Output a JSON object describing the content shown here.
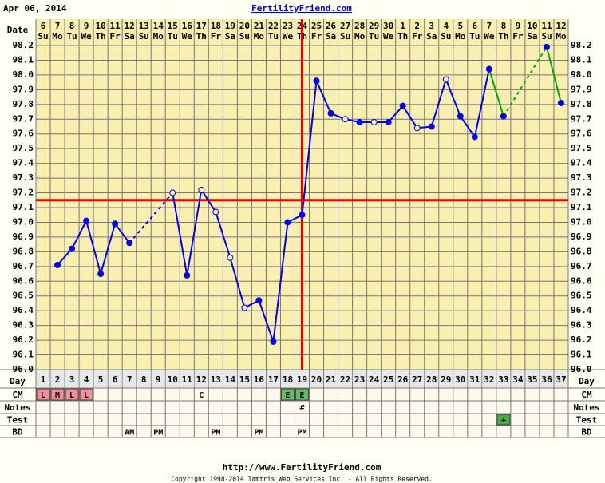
{
  "header": {
    "date": "Apr 06, 2014",
    "site": "FertilityFriend.com"
  },
  "footer": {
    "url": "http://www.FertilityFriend.com",
    "copyright": "Copyright 1998-2014 Tamtris Web Services Inc. - All Rights Reserved."
  },
  "chart_data": {
    "type": "line",
    "date_label": "Date",
    "day_label": "Day",
    "dates": [
      6,
      7,
      8,
      9,
      10,
      11,
      12,
      13,
      14,
      15,
      16,
      17,
      18,
      19,
      20,
      21,
      22,
      23,
      24,
      25,
      26,
      27,
      28,
      29,
      30,
      1,
      2,
      3,
      4,
      5,
      6,
      7,
      8,
      9,
      10,
      11,
      12
    ],
    "weekdays": [
      "Su",
      "Mo",
      "Tu",
      "We",
      "Th",
      "Fr",
      "Sa",
      "Su",
      "Mo",
      "Tu",
      "We",
      "Th",
      "Fr",
      "Sa",
      "Su",
      "Mo",
      "Tu",
      "We",
      "Th",
      "Fr",
      "Sa",
      "Su",
      "Mo",
      "Tu",
      "We",
      "Th",
      "Fr",
      "Sa",
      "Su",
      "Mo",
      "Tu",
      "We",
      "Th",
      "Fr",
      "Sa",
      "Su",
      "Mo"
    ],
    "categories": [
      1,
      2,
      3,
      4,
      5,
      6,
      7,
      8,
      9,
      10,
      11,
      12,
      13,
      14,
      15,
      16,
      17,
      18,
      19,
      20,
      21,
      22,
      23,
      24,
      25,
      26,
      27,
      28,
      29,
      30,
      31,
      32,
      33,
      34,
      35,
      36,
      37
    ],
    "values": [
      null,
      96.71,
      96.82,
      97.01,
      96.65,
      96.99,
      96.86,
      null,
      null,
      97.2,
      96.64,
      97.22,
      97.07,
      96.76,
      96.42,
      96.47,
      96.19,
      97.0,
      97.05,
      97.96,
      97.74,
      97.7,
      97.68,
      97.68,
      97.68,
      97.79,
      97.64,
      97.65,
      97.97,
      97.72,
      97.58,
      98.04,
      97.72,
      null,
      null,
      98.19,
      97.81
    ],
    "open": [
      false,
      false,
      false,
      false,
      false,
      false,
      false,
      false,
      false,
      true,
      false,
      true,
      true,
      true,
      true,
      false,
      false,
      false,
      false,
      false,
      false,
      true,
      false,
      true,
      false,
      false,
      true,
      false,
      true,
      false,
      false,
      false,
      false,
      false,
      false,
      false,
      false
    ],
    "marker_color": "#0000ee",
    "line_colors": [
      "#0000ee",
      "#0000ee",
      "#0000ee",
      "#0000ee",
      "#0000ee",
      "#0000ee",
      "#0000ee",
      "#0000ee",
      "#0000ee",
      "#0000ee",
      "#0000ee",
      "#0000ee",
      "#0000ee",
      "#0000ee",
      "#0000ee",
      "#0000ee",
      "#0000ee",
      "#0000ee",
      "#0000ee",
      "#0000ee",
      "#0000ee",
      "#0000ee",
      "#0000ee",
      "#0000ee",
      "#0000ee",
      "#0000ee",
      "#0000ee",
      "#0000ee",
      "#0000ee",
      "#0000ee",
      "#0000ee",
      "#0000ee",
      "#00aa00",
      "#00aa00",
      "#00aa00",
      "#00aa00",
      "#00aa00"
    ],
    "ylim": [
      96.0,
      98.2
    ],
    "yticks": [
      {
        "value": 96.0,
        "label": "96.0"
      },
      96.1,
      96.2,
      96.3,
      96.4,
      96.5,
      96.6,
      96.7,
      96.8,
      96.9,
      {
        "value": 97.0,
        "label": "97.0"
      },
      97.1,
      97.2,
      97.3,
      97.4,
      97.5,
      97.6,
      97.7,
      97.8,
      97.9,
      {
        "value": 98.0,
        "label": "98.0"
      },
      98.1,
      98.2
    ],
    "grid": true,
    "coverline": 97.15,
    "ovulation_day": 19,
    "marker_line_color": "#ee0000",
    "rows": [
      {
        "label": "CM",
        "cells": [
          "L",
          "M",
          "L",
          "L",
          null,
          null,
          null,
          null,
          null,
          null,
          null,
          "C",
          null,
          null,
          null,
          null,
          null,
          "E",
          "E",
          null,
          null,
          null,
          null,
          null,
          null,
          null,
          null,
          null,
          null,
          null,
          null,
          null,
          null,
          null,
          null,
          null,
          null
        ],
        "colors": [
          "#f0909c",
          "#f0909c",
          "#f0909c",
          "#f0909c",
          null,
          null,
          null,
          null,
          null,
          null,
          null,
          null,
          null,
          null,
          null,
          null,
          null,
          "#66bb66",
          "#66bb66",
          null,
          null,
          null,
          null,
          null,
          null,
          null,
          null,
          null,
          null,
          null,
          null,
          null,
          null,
          null,
          null,
          null,
          null
        ]
      },
      {
        "label": "Notes",
        "cells": [
          null,
          null,
          null,
          null,
          null,
          null,
          null,
          null,
          null,
          null,
          null,
          null,
          null,
          null,
          null,
          null,
          null,
          null,
          "#",
          null,
          null,
          null,
          null,
          null,
          null,
          null,
          null,
          null,
          null,
          null,
          null,
          null,
          null,
          null,
          null,
          null,
          null
        ]
      },
      {
        "label": "Test",
        "cells": [
          null,
          null,
          null,
          null,
          null,
          null,
          null,
          null,
          null,
          null,
          null,
          null,
          null,
          null,
          null,
          null,
          null,
          null,
          null,
          null,
          null,
          null,
          null,
          null,
          null,
          null,
          null,
          null,
          null,
          null,
          null,
          null,
          "+",
          null,
          null,
          null,
          null
        ],
        "colors": [
          null,
          null,
          null,
          null,
          null,
          null,
          null,
          null,
          null,
          null,
          null,
          null,
          null,
          null,
          null,
          null,
          null,
          null,
          null,
          null,
          null,
          null,
          null,
          null,
          null,
          null,
          null,
          null,
          null,
          null,
          null,
          null,
          "#44aa44",
          null,
          null,
          null,
          null
        ]
      },
      {
        "label": "BD",
        "cells": [
          null,
          null,
          null,
          null,
          null,
          null,
          "AM",
          null,
          "PM",
          null,
          null,
          null,
          "PM",
          null,
          null,
          "PM",
          null,
          null,
          "PM",
          null,
          null,
          null,
          null,
          null,
          null,
          null,
          null,
          null,
          null,
          null,
          null,
          null,
          null,
          null,
          null,
          null,
          null
        ]
      }
    ]
  }
}
